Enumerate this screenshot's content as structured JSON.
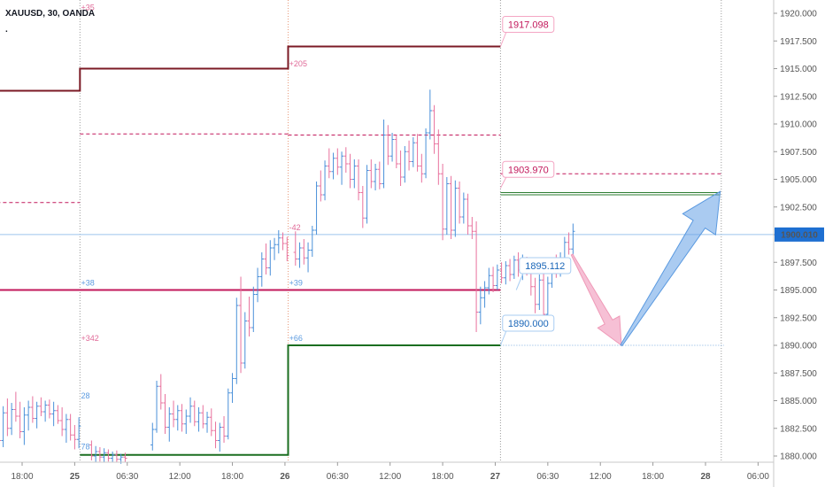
{
  "header": {
    "symbol": "XAUUSD, 30, OANDA",
    "dot": "."
  },
  "colors": {
    "up": "#4a90d9",
    "down": "#e8719d",
    "pivot_r": "#7b1a25",
    "pivot_p": "#c2185b",
    "pivot_s": "#1b6e20",
    "axis": "#555555",
    "session": "#b0b0b0",
    "current": "#1e6fd1"
  },
  "chart_data": {
    "type": "candlestick",
    "title": "XAUUSD, 30, OANDA",
    "ylim": [
      1879.3,
      1921.3
    ],
    "x_range": [
      -1,
      69
    ],
    "y_ticks": [
      1880,
      1882.5,
      1885,
      1887.5,
      1890,
      1892.5,
      1895,
      1897.5,
      1900,
      1902.5,
      1905,
      1907.5,
      1910,
      1912.5,
      1915,
      1917.5,
      1920
    ],
    "y_tick_labels": [
      "1880.000",
      "1882.500",
      "1885.000",
      "1887.500",
      "1890.000",
      "1892.500",
      "1895.000",
      "1897.500",
      "1900.000",
      "1902.500",
      "1905.000",
      "1907.500",
      "1910.000",
      "1912.500",
      "1915.000",
      "1917.500",
      "1920.000"
    ],
    "x_ticks": [
      {
        "label": "18:00",
        "x": 2
      },
      {
        "label": "25",
        "x": 7
      },
      {
        "label": "06:30",
        "x": 12
      },
      {
        "label": "12:00",
        "x": 17
      },
      {
        "label": "18:00",
        "x": 22
      },
      {
        "label": "26",
        "x": 27
      },
      {
        "label": "06:30",
        "x": 32
      },
      {
        "label": "12:00",
        "x": 37
      },
      {
        "label": "18:00",
        "x": 42
      },
      {
        "label": "27",
        "x": 47
      },
      {
        "label": "06:30",
        "x": 52
      },
      {
        "label": "12:00",
        "x": 57
      },
      {
        "label": "18:00",
        "x": 62
      },
      {
        "label": "28",
        "x": 67
      },
      {
        "label": "06:00",
        "x": 72
      }
    ],
    "session_breaks": [
      7.5,
      27.3,
      47.5,
      68.5
    ],
    "current_price": 1900.01,
    "current_price_label": "1900.010",
    "candles": [
      [
        -0.6,
        1885.5,
        1886.4,
        1882.0,
        1883.0
      ],
      [
        -0.2,
        1883.0,
        1884.2,
        1880.6,
        1881.4
      ],
      [
        0.2,
        1881.4,
        1884.5,
        1880.8,
        1883.9
      ],
      [
        0.6,
        1883.9,
        1885.2,
        1881.8,
        1882.5
      ],
      [
        1.0,
        1882.5,
        1884.8,
        1881.9,
        1884.2
      ],
      [
        1.4,
        1884.2,
        1885.8,
        1883.1,
        1883.6
      ],
      [
        1.8,
        1883.6,
        1884.9,
        1881.6,
        1882.2
      ],
      [
        2.2,
        1882.2,
        1884.4,
        1881.0,
        1883.7
      ],
      [
        2.6,
        1883.7,
        1885.0,
        1882.3,
        1884.4
      ],
      [
        3.0,
        1884.4,
        1885.4,
        1883.0,
        1883.4
      ],
      [
        3.4,
        1883.4,
        1884.9,
        1882.5,
        1884.5
      ],
      [
        3.8,
        1884.5,
        1885.3,
        1883.6,
        1884.0
      ],
      [
        4.2,
        1884.0,
        1885.0,
        1883.1,
        1884.6
      ],
      [
        4.6,
        1884.6,
        1885.1,
        1883.4,
        1883.8
      ],
      [
        5.0,
        1883.8,
        1884.9,
        1882.7,
        1884.1
      ],
      [
        5.4,
        1884.1,
        1884.6,
        1882.9,
        1883.2
      ],
      [
        5.8,
        1883.2,
        1884.4,
        1881.8,
        1882.4
      ],
      [
        6.2,
        1882.4,
        1883.8,
        1881.2,
        1883.3
      ],
      [
        6.6,
        1883.3,
        1883.8,
        1881.4,
        1881.9
      ],
      [
        7.0,
        1881.9,
        1882.8,
        1880.6,
        1881.5
      ],
      [
        7.4,
        1881.5,
        1883.5,
        1880.7,
        1882.7
      ],
      [
        8.6,
        1881.0,
        1881.4,
        1879.6,
        1880.0
      ],
      [
        9.0,
        1880.0,
        1880.9,
        1879.4,
        1880.4
      ],
      [
        9.4,
        1880.4,
        1880.8,
        1879.5,
        1879.9
      ],
      [
        9.8,
        1879.9,
        1880.7,
        1879.4,
        1880.3
      ],
      [
        10.2,
        1880.3,
        1880.6,
        1879.5,
        1879.8
      ],
      [
        10.6,
        1879.8,
        1880.4,
        1879.4,
        1880.1
      ],
      [
        11.0,
        1880.1,
        1880.5,
        1879.4,
        1879.7
      ],
      [
        11.4,
        1879.7,
        1880.2,
        1879.3,
        1879.9
      ],
      [
        11.8,
        1879.9,
        1880.3,
        1879.4,
        1879.8
      ],
      [
        14.4,
        1881.0,
        1883.0,
        1880.5,
        1882.4
      ],
      [
        14.8,
        1882.4,
        1886.8,
        1882.1,
        1886.3
      ],
      [
        15.2,
        1886.3,
        1887.4,
        1884.2,
        1884.8
      ],
      [
        15.6,
        1884.8,
        1885.6,
        1882.0,
        1882.6
      ],
      [
        16.0,
        1882.6,
        1884.4,
        1881.3,
        1883.8
      ],
      [
        16.4,
        1883.8,
        1885.0,
        1882.6,
        1883.3
      ],
      [
        16.8,
        1883.3,
        1884.6,
        1882.3,
        1884.1
      ],
      [
        17.2,
        1884.1,
        1884.7,
        1882.2,
        1882.9
      ],
      [
        17.6,
        1882.9,
        1884.2,
        1882.0,
        1883.6
      ],
      [
        18.0,
        1883.6,
        1885.3,
        1883.0,
        1884.5
      ],
      [
        18.4,
        1884.5,
        1885.0,
        1882.7,
        1883.1
      ],
      [
        18.8,
        1883.1,
        1884.4,
        1882.2,
        1883.9
      ],
      [
        19.2,
        1883.9,
        1884.6,
        1882.5,
        1882.9
      ],
      [
        19.6,
        1882.9,
        1884.0,
        1882.1,
        1883.5
      ],
      [
        20.0,
        1883.5,
        1884.3,
        1881.8,
        1882.3
      ],
      [
        20.4,
        1882.3,
        1883.1,
        1880.7,
        1881.4
      ],
      [
        20.8,
        1881.4,
        1883.0,
        1880.4,
        1882.6
      ],
      [
        21.2,
        1882.6,
        1883.6,
        1881.2,
        1881.8
      ],
      [
        21.6,
        1881.8,
        1886.1,
        1881.5,
        1885.7
      ],
      [
        22.0,
        1885.7,
        1887.5,
        1884.8,
        1887.0
      ],
      [
        22.4,
        1887.0,
        1894.3,
        1886.5,
        1893.6
      ],
      [
        22.8,
        1893.6,
        1896.2,
        1887.5,
        1888.4
      ],
      [
        23.2,
        1888.4,
        1893.0,
        1887.9,
        1892.2
      ],
      [
        23.6,
        1892.2,
        1894.4,
        1890.8,
        1891.6
      ],
      [
        24.0,
        1891.6,
        1895.3,
        1891.2,
        1894.6
      ],
      [
        24.4,
        1894.6,
        1897.0,
        1893.9,
        1896.2
      ],
      [
        24.8,
        1896.2,
        1898.4,
        1895.3,
        1897.8
      ],
      [
        25.2,
        1897.8,
        1899.2,
        1896.4,
        1897.0
      ],
      [
        25.6,
        1897.0,
        1899.5,
        1896.3,
        1898.8
      ],
      [
        26.0,
        1898.8,
        1899.7,
        1897.7,
        1899.1
      ],
      [
        26.4,
        1899.1,
        1900.4,
        1898.3,
        1899.7
      ],
      [
        26.8,
        1899.7,
        1900.2,
        1898.6,
        1899.2
      ],
      [
        27.2,
        1899.2,
        1899.8,
        1897.6,
        1898.1
      ],
      [
        28.0,
        1898.4,
        1900.3,
        1897.2,
        1897.8
      ],
      [
        28.4,
        1897.8,
        1899.3,
        1897.0,
        1898.8
      ],
      [
        28.8,
        1898.8,
        1899.6,
        1897.3,
        1897.9
      ],
      [
        29.2,
        1897.9,
        1899.3,
        1896.6,
        1898.6
      ],
      [
        29.6,
        1898.6,
        1900.8,
        1898.0,
        1900.4
      ],
      [
        30.0,
        1900.4,
        1904.8,
        1900.0,
        1904.4
      ],
      [
        30.4,
        1904.4,
        1905.8,
        1903.0,
        1903.6
      ],
      [
        30.8,
        1903.6,
        1906.7,
        1903.1,
        1906.2
      ],
      [
        31.2,
        1906.2,
        1907.8,
        1905.1,
        1905.7
      ],
      [
        31.6,
        1905.7,
        1907.4,
        1905.0,
        1906.9
      ],
      [
        32.0,
        1906.9,
        1907.8,
        1905.4,
        1906.1
      ],
      [
        32.4,
        1906.1,
        1907.5,
        1904.5,
        1907.1
      ],
      [
        32.8,
        1907.1,
        1907.9,
        1905.6,
        1906.4
      ],
      [
        33.2,
        1906.4,
        1907.3,
        1904.2,
        1905.0
      ],
      [
        33.6,
        1905.0,
        1906.8,
        1904.2,
        1906.2
      ],
      [
        34.0,
        1906.2,
        1906.8,
        1903.1,
        1903.8
      ],
      [
        34.4,
        1903.8,
        1904.4,
        1900.6,
        1901.5
      ],
      [
        34.8,
        1901.5,
        1906.3,
        1901.0,
        1905.8
      ],
      [
        35.2,
        1905.8,
        1906.8,
        1904.2,
        1904.8
      ],
      [
        35.6,
        1904.8,
        1906.4,
        1904.0,
        1905.9
      ],
      [
        36.0,
        1905.9,
        1906.6,
        1904.1,
        1904.6
      ],
      [
        36.4,
        1904.6,
        1910.4,
        1904.2,
        1909.0
      ],
      [
        36.8,
        1909.0,
        1909.9,
        1906.3,
        1907.1
      ],
      [
        37.2,
        1907.1,
        1909.2,
        1906.6,
        1908.6
      ],
      [
        37.6,
        1908.6,
        1909.0,
        1906.0,
        1906.4
      ],
      [
        38.0,
        1906.4,
        1907.6,
        1904.4,
        1905.2
      ],
      [
        38.4,
        1905.2,
        1908.0,
        1904.7,
        1907.5
      ],
      [
        38.8,
        1907.5,
        1908.5,
        1905.8,
        1906.6
      ],
      [
        39.2,
        1906.6,
        1908.8,
        1906.1,
        1908.3
      ],
      [
        39.6,
        1908.3,
        1909.1,
        1905.7,
        1906.2
      ],
      [
        40.0,
        1906.2,
        1907.3,
        1904.7,
        1905.5
      ],
      [
        40.4,
        1905.5,
        1909.6,
        1905.1,
        1909.2
      ],
      [
        40.8,
        1909.2,
        1913.1,
        1908.6,
        1911.2
      ],
      [
        41.2,
        1911.2,
        1911.7,
        1907.3,
        1908.2
      ],
      [
        41.6,
        1908.2,
        1909.5,
        1904.5,
        1905.5
      ],
      [
        42.0,
        1905.5,
        1906.4,
        1899.5,
        1900.5
      ],
      [
        42.4,
        1900.5,
        1905.2,
        1900.0,
        1904.6
      ],
      [
        42.8,
        1904.6,
        1905.3,
        1899.6,
        1900.4
      ],
      [
        43.2,
        1900.4,
        1904.9,
        1899.8,
        1904.2
      ],
      [
        43.6,
        1904.2,
        1904.8,
        1901.0,
        1901.6
      ],
      [
        44.0,
        1901.6,
        1903.8,
        1901.0,
        1903.2
      ],
      [
        44.4,
        1903.2,
        1903.7,
        1900.0,
        1900.8
      ],
      [
        44.8,
        1900.8,
        1901.6,
        1899.6,
        1900.3
      ],
      [
        45.2,
        1900.3,
        1901.2,
        1891.2,
        1893.0
      ],
      [
        45.6,
        1893.0,
        1895.3,
        1891.9,
        1894.3
      ],
      [
        46.0,
        1894.3,
        1895.8,
        1893.4,
        1895.2
      ],
      [
        46.4,
        1895.2,
        1897.0,
        1894.6,
        1896.3
      ],
      [
        46.8,
        1896.3,
        1897.1,
        1894.8,
        1895.4
      ],
      [
        47.2,
        1895.4,
        1897.3,
        1895.0,
        1896.8
      ],
      [
        47.6,
        1896.8,
        1897.5,
        1895.6,
        1896.1
      ],
      [
        48.0,
        1896.1,
        1897.6,
        1895.5,
        1897.2
      ],
      [
        48.4,
        1897.2,
        1897.8,
        1895.8,
        1896.4
      ],
      [
        48.8,
        1896.4,
        1898.1,
        1896.0,
        1897.7
      ],
      [
        49.2,
        1897.7,
        1898.4,
        1896.2,
        1896.8
      ],
      [
        49.6,
        1896.8,
        1898.2,
        1895.9,
        1897.6
      ],
      [
        50.0,
        1897.6,
        1898.0,
        1896.3,
        1896.9
      ],
      [
        50.4,
        1896.9,
        1897.5,
        1894.5,
        1895.3
      ],
      [
        50.8,
        1895.3,
        1896.1,
        1892.9,
        1893.7
      ],
      [
        51.2,
        1893.7,
        1896.4,
        1893.2,
        1895.9
      ],
      [
        51.6,
        1895.9,
        1896.6,
        1892.0,
        1892.8
      ],
      [
        52.0,
        1892.8,
        1896.2,
        1892.4,
        1895.6
      ],
      [
        52.4,
        1895.6,
        1897.9,
        1895.2,
        1897.4
      ],
      [
        52.8,
        1897.4,
        1898.2,
        1896.1,
        1896.7
      ],
      [
        53.2,
        1896.7,
        1898.4,
        1896.2,
        1897.9
      ],
      [
        53.6,
        1897.9,
        1899.8,
        1897.4,
        1899.3
      ],
      [
        54.0,
        1899.3,
        1900.2,
        1898.2,
        1898.7
      ],
      [
        54.4,
        1898.7,
        1901.0,
        1898.2,
        1900.3
      ]
    ],
    "pivot_levels": [
      {
        "type": "resistance",
        "style": "solid",
        "width": 2,
        "segments": [
          [
            -1,
            7.5,
            1913.0
          ],
          [
            7.5,
            27.3,
            1915.0
          ],
          [
            27.3,
            47.5,
            1917.0
          ]
        ]
      },
      {
        "type": "resistance-mid",
        "style": "dashed",
        "width": 1,
        "segments": [
          [
            -1,
            7.5,
            1902.9
          ],
          [
            7.5,
            27.3,
            1909.1
          ],
          [
            27.3,
            47.5,
            1909.0
          ],
          [
            47.5,
            68.5,
            1905.5
          ]
        ]
      },
      {
        "type": "pivot",
        "style": "solid",
        "width": 2,
        "segments": [
          [
            -1,
            47.5,
            1895.0
          ]
        ]
      },
      {
        "type": "support",
        "style": "solid",
        "width": 2,
        "segments": [
          [
            7.5,
            27.3,
            1880.1
          ],
          [
            27.3,
            47.5,
            1890.0
          ]
        ]
      }
    ],
    "green_lines": [
      1903.8,
      1903.6
    ],
    "dotted_level": 1890.0,
    "callouts": [
      {
        "text": "1917.098",
        "x": 47.7,
        "y": 1919.0,
        "color": "pink",
        "anchor_x": 47.5,
        "anchor_y": 1917.0
      },
      {
        "text": "1903.970",
        "x": 47.7,
        "y": 1905.9,
        "color": "pink",
        "anchor_x": 47.5,
        "anchor_y": 1904.2
      },
      {
        "text": "1895.112",
        "x": 49.3,
        "y": 1897.2,
        "color": "blue",
        "anchor_x": 49.0,
        "anchor_y": 1895.0
      },
      {
        "text": "1890.000",
        "x": 47.7,
        "y": 1892.0,
        "color": "blue",
        "anchor_x": 47.5,
        "anchor_y": 1890.0
      }
    ],
    "tiny_labels": [
      {
        "text": "+35",
        "x": 7.6,
        "y": 1920.3,
        "color": "pink"
      },
      {
        "text": "+38",
        "x": 7.6,
        "y": 1895.4,
        "color": "blue"
      },
      {
        "text": "+342",
        "x": 7.6,
        "y": 1890.4,
        "color": "pink"
      },
      {
        "text": "28",
        "x": 7.6,
        "y": 1885.2,
        "color": "blue"
      },
      {
        "text": "78",
        "x": 7.6,
        "y": 1880.6,
        "color": "blue"
      },
      {
        "text": "+205",
        "x": 27.4,
        "y": 1915.2,
        "color": "pink"
      },
      {
        "text": "-42",
        "x": 27.4,
        "y": 1900.4,
        "color": "pink"
      },
      {
        "text": "+39",
        "x": 27.4,
        "y": 1895.4,
        "color": "blue"
      },
      {
        "text": "+66",
        "x": 27.4,
        "y": 1890.4,
        "color": "blue"
      }
    ],
    "arrows": [
      {
        "color": "pink",
        "from": [
          54.3,
          1898.2
        ],
        "to": [
          59.0,
          1890.0
        ]
      },
      {
        "color": "blue",
        "from": [
          59.0,
          1890.0
        ],
        "to": [
          68.4,
          1903.9
        ]
      }
    ]
  }
}
